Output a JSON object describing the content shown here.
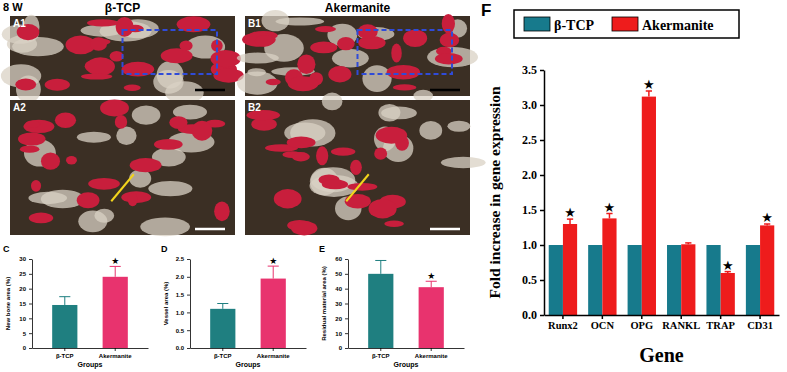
{
  "figure": {
    "time_label": "8 W",
    "panels": [
      {
        "label": "A1",
        "title": "β-TCP"
      },
      {
        "label": "B1",
        "title": "Akermanite"
      },
      {
        "label": "A2"
      },
      {
        "label": "B2"
      }
    ]
  },
  "chart_data": [
    {
      "type": "bar",
      "title": "C",
      "x_label": "Groups",
      "y_label": "New bone area (%)",
      "categories": [
        "β-TCP",
        "Akermanite"
      ],
      "values": [
        14.5,
        24
      ],
      "errors": [
        2.8,
        3.5
      ],
      "colors": [
        "#1f7f80",
        "#e8336e"
      ],
      "ylim": [
        0,
        30
      ],
      "yticks": [
        0,
        5,
        10,
        15,
        20,
        25,
        30
      ],
      "annotations": [
        {
          "x": "Akermanite",
          "text": "★"
        }
      ]
    },
    {
      "type": "bar",
      "title": "D",
      "x_label": "Groups",
      "y_label": "Vessel area (%)",
      "categories": [
        "β-TCP",
        "Akermanite"
      ],
      "values": [
        1.1,
        1.95
      ],
      "errors": [
        0.15,
        0.35
      ],
      "colors": [
        "#1f7f80",
        "#e8336e"
      ],
      "ylim": [
        0,
        2.5
      ],
      "yticks": [
        {
          "value": 0,
          "label": "0.0"
        },
        {
          "value": 0.5,
          "label": "0.5"
        },
        {
          "value": 1,
          "label": "1.0"
        },
        {
          "value": 1.5,
          "label": "1.5"
        },
        {
          "value": 2,
          "label": "2.0"
        },
        {
          "value": 2.5,
          "label": "2.5"
        }
      ],
      "annotations": [
        {
          "x": "Akermanite",
          "text": "★"
        }
      ]
    },
    {
      "type": "bar",
      "title": "E",
      "x_label": "Groups",
      "y_label": "Residual material area (%)",
      "categories": [
        "β-TCP",
        "Akermanite"
      ],
      "values": [
        50,
        41
      ],
      "errors": [
        9,
        4
      ],
      "colors": [
        "#1f7f80",
        "#e8336e"
      ],
      "ylim": [
        0,
        60
      ],
      "yticks": [
        0,
        10,
        20,
        30,
        40,
        50,
        60
      ],
      "annotations": [
        {
          "x": "Akermanite",
          "text": "★"
        }
      ]
    },
    {
      "type": "bar",
      "title": "F",
      "x_label": "Gene",
      "y_label": "Fold increase in gene expression",
      "categories": [
        "Runx2",
        "OCN",
        "OPG",
        "RANKL",
        "TRAP",
        "CD31"
      ],
      "series": [
        {
          "name": "β-TCP",
          "color": "#177a8c",
          "values": [
            1,
            1,
            1,
            1,
            1,
            1
          ]
        },
        {
          "name": "Akermanite",
          "color": "#ee1c1c",
          "values": [
            1.3,
            1.38,
            3.12,
            1.01,
            0.6,
            1.28
          ],
          "errors": [
            0.07,
            0.07,
            0.08,
            0.02,
            0.02,
            0.02
          ]
        }
      ],
      "ylim": [
        0,
        3.5
      ],
      "yticks": [
        {
          "value": 0,
          "label": "0.0"
        },
        {
          "value": 0.5,
          "label": "0.5"
        },
        {
          "value": 1,
          "label": "1.0"
        },
        {
          "value": 1.5,
          "label": "1.5"
        },
        {
          "value": 2,
          "label": "2.0"
        },
        {
          "value": 2.5,
          "label": "2.5"
        },
        {
          "value": 3,
          "label": "3.0"
        },
        {
          "value": 3.5,
          "label": "3.5"
        }
      ],
      "legend": "top",
      "annotations": [
        {
          "x": "Runx2",
          "series": "Akermanite",
          "text": "★"
        },
        {
          "x": "OCN",
          "series": "Akermanite",
          "text": "★"
        },
        {
          "x": "OPG",
          "series": "Akermanite",
          "text": "★"
        },
        {
          "x": "TRAP",
          "series": "Akermanite",
          "text": "★"
        },
        {
          "x": "CD31",
          "series": "Akermanite",
          "text": "★"
        }
      ]
    }
  ]
}
